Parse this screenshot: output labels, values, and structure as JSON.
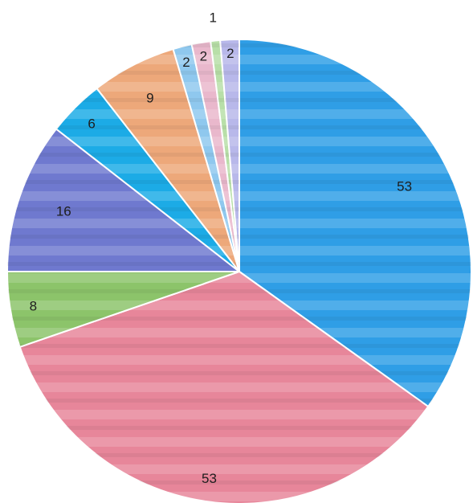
{
  "chart_data": {
    "type": "pie",
    "title": "",
    "legend": "none",
    "start": "top",
    "direction": "clockwise",
    "slices": [
      {
        "value": 53,
        "label": "53",
        "color": "#2f9ee6"
      },
      {
        "value": 53,
        "label": "53",
        "color": "#e7869a"
      },
      {
        "value": 8,
        "label": "8",
        "color": "#8cc46a"
      },
      {
        "value": 16,
        "label": "16",
        "color": "#6f79cf"
      },
      {
        "value": 6,
        "label": "6",
        "color": "#1cabe6"
      },
      {
        "value": 9,
        "label": "9",
        "color": "#eda87a"
      },
      {
        "value": 2,
        "label": "2",
        "color": "#8fc8ee"
      },
      {
        "value": 2,
        "label": "2",
        "color": "#e9b8cc"
      },
      {
        "value": 1,
        "label": "1",
        "color": "#b8dfa8"
      },
      {
        "value": 2,
        "label": "2",
        "color": "#b8b8ea"
      }
    ]
  }
}
